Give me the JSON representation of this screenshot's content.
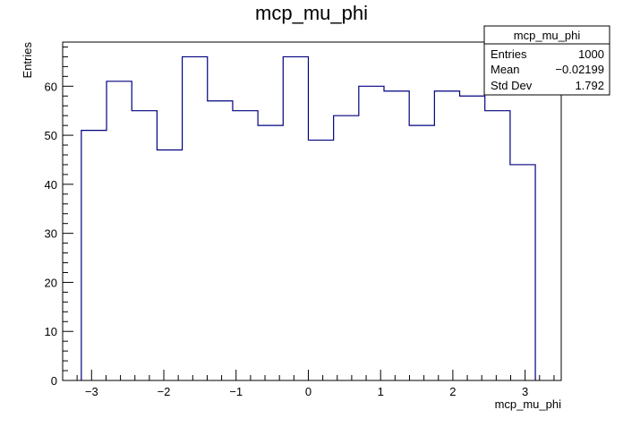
{
  "chart_data": {
    "type": "histogram",
    "title": "mcp_mu_phi",
    "xlabel": "mcp_mu_phi",
    "ylabel": "Entries",
    "xlim": [
      -3.4,
      3.5
    ],
    "ylim": [
      0,
      69
    ],
    "x_ticks": [
      -3,
      -2,
      -1,
      0,
      1,
      2,
      3
    ],
    "y_ticks": [
      0,
      10,
      20,
      30,
      40,
      50,
      60
    ],
    "bin_edges": [
      -3.1416,
      -2.7925,
      -2.4435,
      -2.0944,
      -1.7453,
      -1.3963,
      -1.0472,
      -0.6981,
      -0.3491,
      0.0,
      0.3491,
      0.6981,
      1.0472,
      1.3963,
      1.7453,
      2.0944,
      2.4435,
      2.7925,
      3.1416
    ],
    "values": [
      51,
      61,
      55,
      47,
      66,
      57,
      55,
      52,
      66,
      49,
      54,
      60,
      59,
      52,
      59,
      58,
      55,
      44
    ],
    "line_color": "#000080",
    "stats_box": {
      "title": "mcp_mu_phi",
      "rows": [
        {
          "label": "Entries",
          "value": "1000"
        },
        {
          "label": "Mean",
          "value": "−0.02199"
        },
        {
          "label": "Std Dev",
          "value": "1.792"
        }
      ]
    }
  }
}
